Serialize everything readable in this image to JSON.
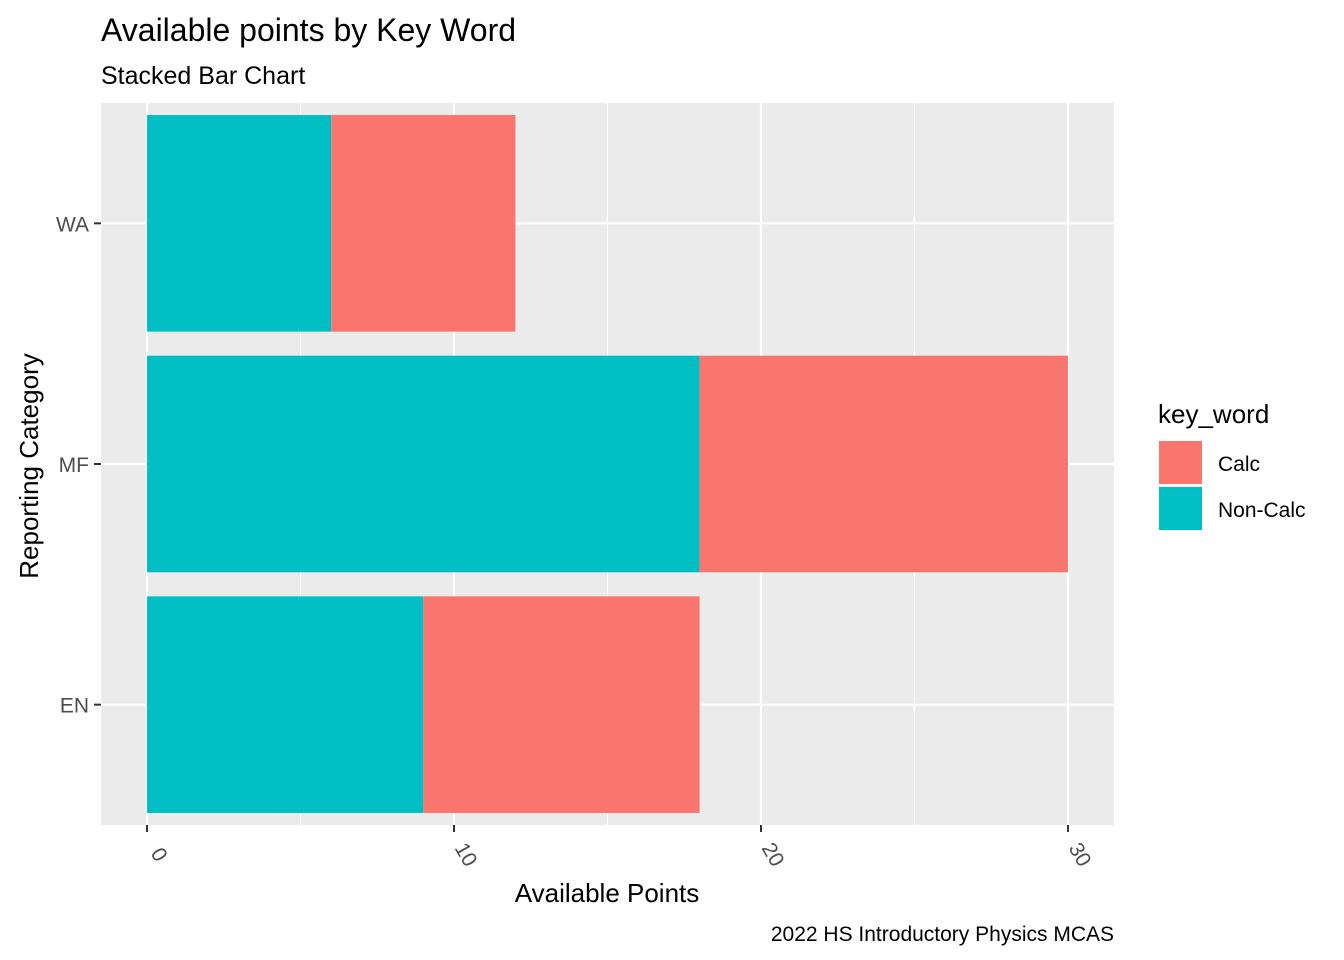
{
  "chart_data": {
    "type": "bar",
    "orientation": "horizontal",
    "stacked": true,
    "title": "Available points by Key Word",
    "subtitle": "Stacked Bar Chart",
    "caption": "2022 HS Introductory Physics MCAS",
    "xlabel": "Available Points",
    "ylabel": "Reporting Category",
    "xlim": [
      -1.5,
      31.5
    ],
    "x_ticks": [
      0,
      10,
      20,
      30
    ],
    "x_tick_labels": [
      "0",
      "10",
      "20",
      "30"
    ],
    "x_minor_ticks": [
      5,
      15,
      25
    ],
    "categories": [
      "WA",
      "MF",
      "EN"
    ],
    "series": [
      {
        "name": "Non-Calc",
        "color": "#00BFC4",
        "values": [
          6,
          18,
          9
        ]
      },
      {
        "name": "Calc",
        "color": "#F8766D",
        "values": [
          6,
          12,
          9
        ]
      }
    ],
    "legend": {
      "title": "key_word",
      "position": "right",
      "entries": [
        {
          "label": "Calc",
          "color": "#F8766D"
        },
        {
          "label": "Non-Calc",
          "color": "#00BFC4"
        }
      ]
    },
    "panel_background": "#EBEBEB",
    "grid_color": "#FFFFFF"
  }
}
